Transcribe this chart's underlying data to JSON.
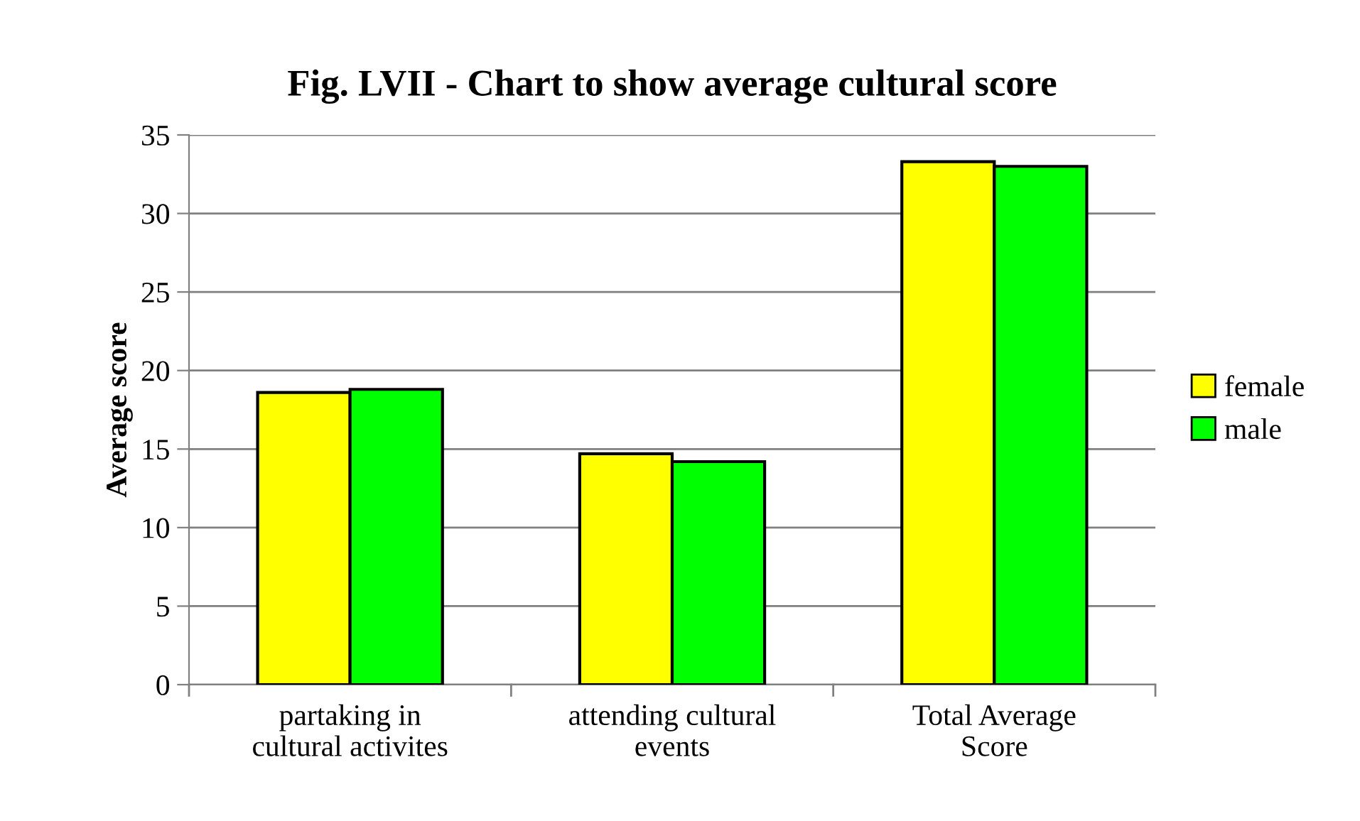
{
  "chart_data": {
    "type": "bar",
    "title": "Fig. LVII - Chart to show average cultural score",
    "ylabel": "Average score",
    "categories": [
      "partaking in\ncultural activites",
      "attending cultural\nevents",
      "Total Average\nScore"
    ],
    "series": [
      {
        "name": "female",
        "color": "#ffff00",
        "values": [
          18.6,
          14.7,
          33.3
        ]
      },
      {
        "name": "male",
        "color": "#00ff00",
        "values": [
          18.8,
          14.2,
          33.0
        ]
      }
    ],
    "ylim": [
      0,
      35
    ],
    "yticks": [
      0,
      5,
      10,
      15,
      20,
      25,
      30,
      35
    ],
    "grid": "y",
    "legend": "right"
  }
}
